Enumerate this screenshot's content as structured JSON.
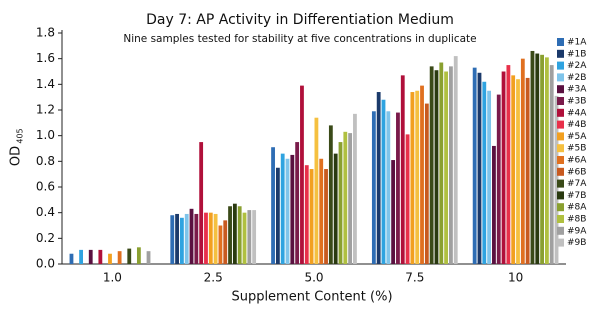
{
  "chart_data": {
    "type": "bar",
    "title": "Day 7: AP Activity in Differentiation Medium",
    "subtitle": "Nine samples tested for stability at five concentrations in duplicate",
    "xlabel": "Supplement Content (%)",
    "ylabel": "OD",
    "ylabel_sub": "405",
    "categories": [
      "1.0",
      "2.5",
      "5.0",
      "7.5",
      "10"
    ],
    "ylim": [
      0,
      1.8
    ],
    "yticks": [
      {
        "value": 0,
        "label": "0.0"
      },
      0.2,
      0.4,
      0.6,
      0.8,
      {
        "value": 1,
        "label": "1.0"
      },
      1.2,
      1.4,
      1.6,
      1.8
    ],
    "legend": "right",
    "series": [
      {
        "name": "#1A",
        "color": "#2e6db4",
        "values": [
          0.08,
          0.38,
          0.91,
          1.19,
          1.53
        ]
      },
      {
        "name": "#1B",
        "color": "#1b3a6b",
        "values": [
          0,
          0.39,
          0.75,
          1.34,
          1.49
        ]
      },
      {
        "name": "#2A",
        "color": "#2fa3e0",
        "values": [
          0.11,
          0.36,
          0.86,
          1.28,
          1.42
        ]
      },
      {
        "name": "#2B",
        "color": "#7fc4ea",
        "values": [
          0,
          0.39,
          0.82,
          1.19,
          1.35
        ]
      },
      {
        "name": "#3A",
        "color": "#5a1040",
        "values": [
          0.11,
          0.43,
          0.85,
          0.81,
          0.92
        ]
      },
      {
        "name": "#3B",
        "color": "#7a1a4a",
        "values": [
          0,
          0.39,
          0.95,
          1.18,
          1.32
        ]
      },
      {
        "name": "#4A",
        "color": "#b0103a",
        "values": [
          0.11,
          0.95,
          1.39,
          1.47,
          1.5
        ]
      },
      {
        "name": "#4B",
        "color": "#e8304a",
        "values": [
          0,
          0.4,
          0.77,
          1.01,
          1.55
        ]
      },
      {
        "name": "#5A",
        "color": "#f2a020",
        "values": [
          0.08,
          0.4,
          0.74,
          1.34,
          1.47
        ]
      },
      {
        "name": "#5B",
        "color": "#f5c040",
        "values": [
          0,
          0.39,
          1.14,
          1.35,
          1.44
        ]
      },
      {
        "name": "#6A",
        "color": "#e07020",
        "values": [
          0.1,
          0.3,
          0.82,
          1.39,
          1.6
        ]
      },
      {
        "name": "#6B",
        "color": "#c85a20",
        "values": [
          0,
          0.34,
          0.74,
          1.25,
          1.45
        ]
      },
      {
        "name": "#7A",
        "color": "#3a4a18",
        "values": [
          0.12,
          0.45,
          1.08,
          1.54,
          1.66
        ]
      },
      {
        "name": "#7B",
        "color": "#2a3a10",
        "values": [
          0,
          0.47,
          0.86,
          1.51,
          1.64
        ]
      },
      {
        "name": "#8A",
        "color": "#8aa030",
        "values": [
          0.13,
          0.45,
          0.95,
          1.57,
          1.63
        ]
      },
      {
        "name": "#8B",
        "color": "#b0c040",
        "values": [
          0,
          0.4,
          1.03,
          1.5,
          1.61
        ]
      },
      {
        "name": "#9A",
        "color": "#a0a0a0",
        "values": [
          0.1,
          0.42,
          1.02,
          1.54,
          1.55
        ]
      },
      {
        "name": "#9B",
        "color": "#c0c0c0",
        "values": [
          0,
          0.42,
          1.17,
          1.62,
          1.31
        ]
      }
    ]
  }
}
